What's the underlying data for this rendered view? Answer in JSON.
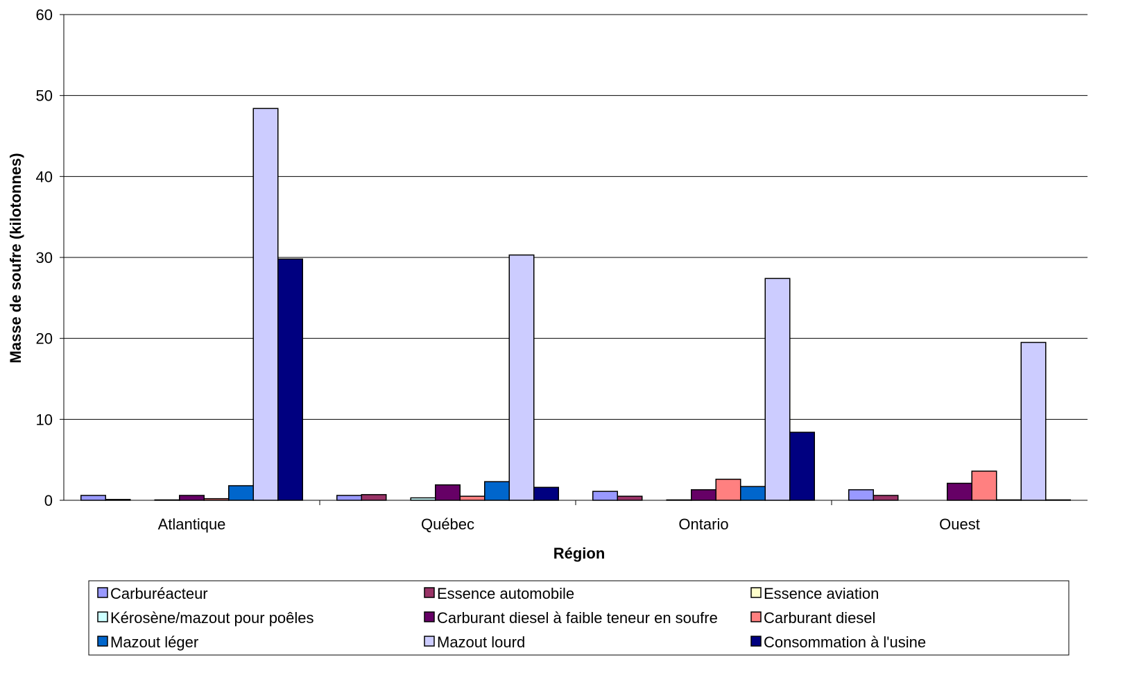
{
  "chart_data": {
    "type": "bar",
    "title": "",
    "xlabel": "Région",
    "ylabel": "Masse de soufre (kilotonnes)",
    "ylim": [
      0,
      60
    ],
    "yticks": [
      0,
      10,
      20,
      30,
      40,
      50,
      60
    ],
    "grid": true,
    "legend_position": "bottom",
    "categories": [
      "Atlantique",
      "Québec",
      "Ontario",
      "Ouest"
    ],
    "series": [
      {
        "name": "Carburéacteur",
        "color": "#9999ff",
        "values": [
          0.6,
          0.6,
          1.1,
          1.3
        ]
      },
      {
        "name": "Essence automobile",
        "color": "#993366",
        "values": [
          0.1,
          0.7,
          0.5,
          0.6
        ]
      },
      {
        "name": "Essence aviation",
        "color": "#ffffcc",
        "values": [
          0,
          0,
          0,
          0
        ]
      },
      {
        "name": "Kérosène/mazout pour poêles",
        "color": "#ccffff",
        "values": [
          0.05,
          0.3,
          0.05,
          0
        ]
      },
      {
        "name": "Carburant diesel à faible teneur en soufre",
        "color": "#660066",
        "values": [
          0.6,
          1.9,
          1.3,
          2.1
        ]
      },
      {
        "name": "Carburant diesel",
        "color": "#ff8080",
        "values": [
          0.2,
          0.5,
          2.6,
          3.6
        ]
      },
      {
        "name": "Mazout léger",
        "color": "#0066cc",
        "values": [
          1.8,
          2.3,
          1.7,
          0.05
        ]
      },
      {
        "name": "Mazout lourd",
        "color": "#ccccff",
        "values": [
          48.4,
          30.3,
          27.4,
          19.5
        ]
      },
      {
        "name": "Consommation à l'usine",
        "color": "#000080",
        "values": [
          29.8,
          1.6,
          8.4,
          0.05
        ]
      }
    ]
  }
}
